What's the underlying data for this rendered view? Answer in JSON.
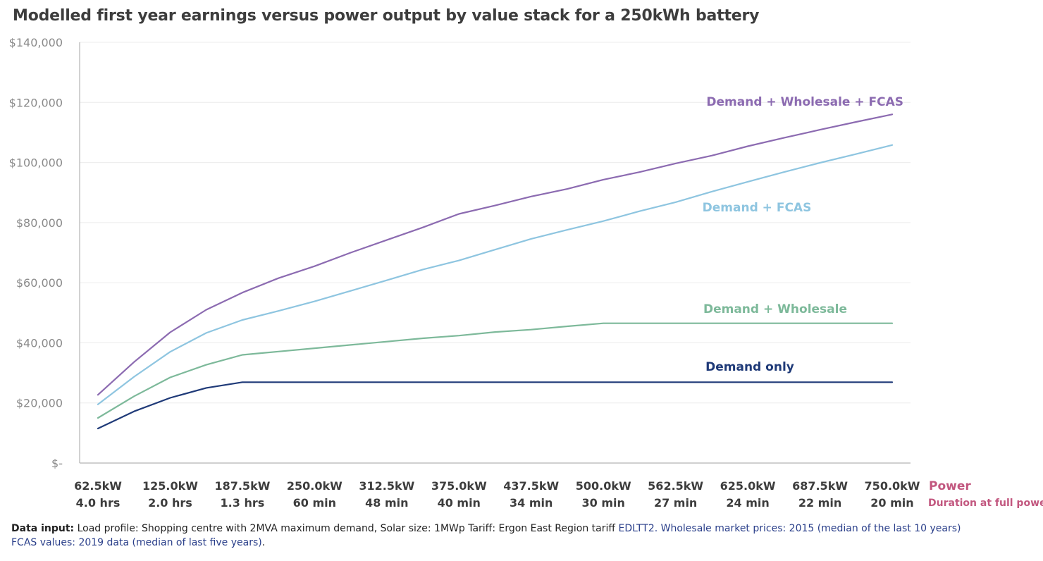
{
  "title": "Modelled first year earnings versus power output by value stack for a 250kWh battery",
  "chart_data": {
    "type": "line",
    "title": "Modelled first year earnings versus power output by value stack for a 250kWh battery",
    "xlabel": "Power",
    "xlabel_secondary": "Duration at full power",
    "ylabel": "",
    "ylim": [
      0,
      140000
    ],
    "yticks": [
      {
        "value": 0,
        "label": "$-"
      },
      {
        "value": 20000,
        "label": "$20,000"
      },
      {
        "value": 40000,
        "label": "$40,000"
      },
      {
        "value": 60000,
        "label": "$60,000"
      },
      {
        "value": 80000,
        "label": "$80,000"
      },
      {
        "value": 100000,
        "label": "$100,000"
      },
      {
        "value": 120000,
        "label": "$120,000"
      },
      {
        "value": 140000,
        "label": "$140,000"
      }
    ],
    "grid": true,
    "x": [
      62.5,
      93.75,
      125,
      156.25,
      187.5,
      218.75,
      250,
      281.25,
      312.5,
      343.75,
      375,
      406.25,
      437.5,
      468.75,
      500,
      531.25,
      562.5,
      593.75,
      625,
      656.25,
      687.5,
      718.75,
      750
    ],
    "xticks": [
      {
        "power": "62.5kW",
        "duration": "4.0 hrs"
      },
      {
        "power": "125.0kW",
        "duration": "2.0 hrs"
      },
      {
        "power": "187.5kW",
        "duration": "1.3 hrs"
      },
      {
        "power": "250.0kW",
        "duration": "60 min"
      },
      {
        "power": "312.5kW",
        "duration": "48 min"
      },
      {
        "power": "375.0kW",
        "duration": "40 min"
      },
      {
        "power": "437.5kW",
        "duration": "34 min"
      },
      {
        "power": "500.0kW",
        "duration": "30 min"
      },
      {
        "power": "562.5kW",
        "duration": "27 min"
      },
      {
        "power": "625.0kW",
        "duration": "24 min"
      },
      {
        "power": "687.5kW",
        "duration": "22 min"
      },
      {
        "power": "750.0kW",
        "duration": "20 min"
      }
    ],
    "series": [
      {
        "name": "Demand + Wholesale + FCAS",
        "color": "#8c6bb1",
        "values": [
          22700,
          33600,
          43500,
          51000,
          56700,
          61500,
          65500,
          70000,
          74200,
          78400,
          82900,
          85700,
          88700,
          91200,
          94300,
          96800,
          99700,
          102300,
          105400,
          108200,
          110900,
          113500,
          116000
        ]
      },
      {
        "name": "Demand + FCAS",
        "color": "#8ec5e0",
        "values": [
          19500,
          28700,
          37000,
          43300,
          47600,
          50600,
          53800,
          57300,
          60800,
          64400,
          67400,
          71000,
          74600,
          77600,
          80500,
          83800,
          86800,
          90300,
          93600,
          96800,
          99900,
          102800,
          105800
        ]
      },
      {
        "name": "Demand + Wholesale",
        "color": "#7db99a",
        "values": [
          15000,
          22200,
          28500,
          32700,
          36000,
          37100,
          38200,
          39300,
          40400,
          41500,
          42400,
          43600,
          44400,
          45500,
          46500,
          46500,
          46500,
          46500,
          46500,
          46500,
          46500,
          46500,
          46500
        ]
      },
      {
        "name": "Demand only",
        "color": "#1f3a78",
        "values": [
          11500,
          17200,
          21700,
          25000,
          26900,
          26900,
          26900,
          26900,
          26900,
          26900,
          26900,
          26900,
          26900,
          26900,
          26900,
          26900,
          26900,
          26900,
          26900,
          26900,
          26900,
          26900,
          26900
        ]
      }
    ]
  },
  "footnote": {
    "label": "Data input:",
    "text1": " Load profile: Shopping centre with 2MVA maximum demand, Solar size: 1MWp Tariff: Ergon East Region tariff ",
    "link1": "EDLTT2. Wholesale market prices: 2015 (median of the last 10 years)",
    "link2": "FCAS values: 2019 data (median of last five years)",
    "text2": "."
  }
}
